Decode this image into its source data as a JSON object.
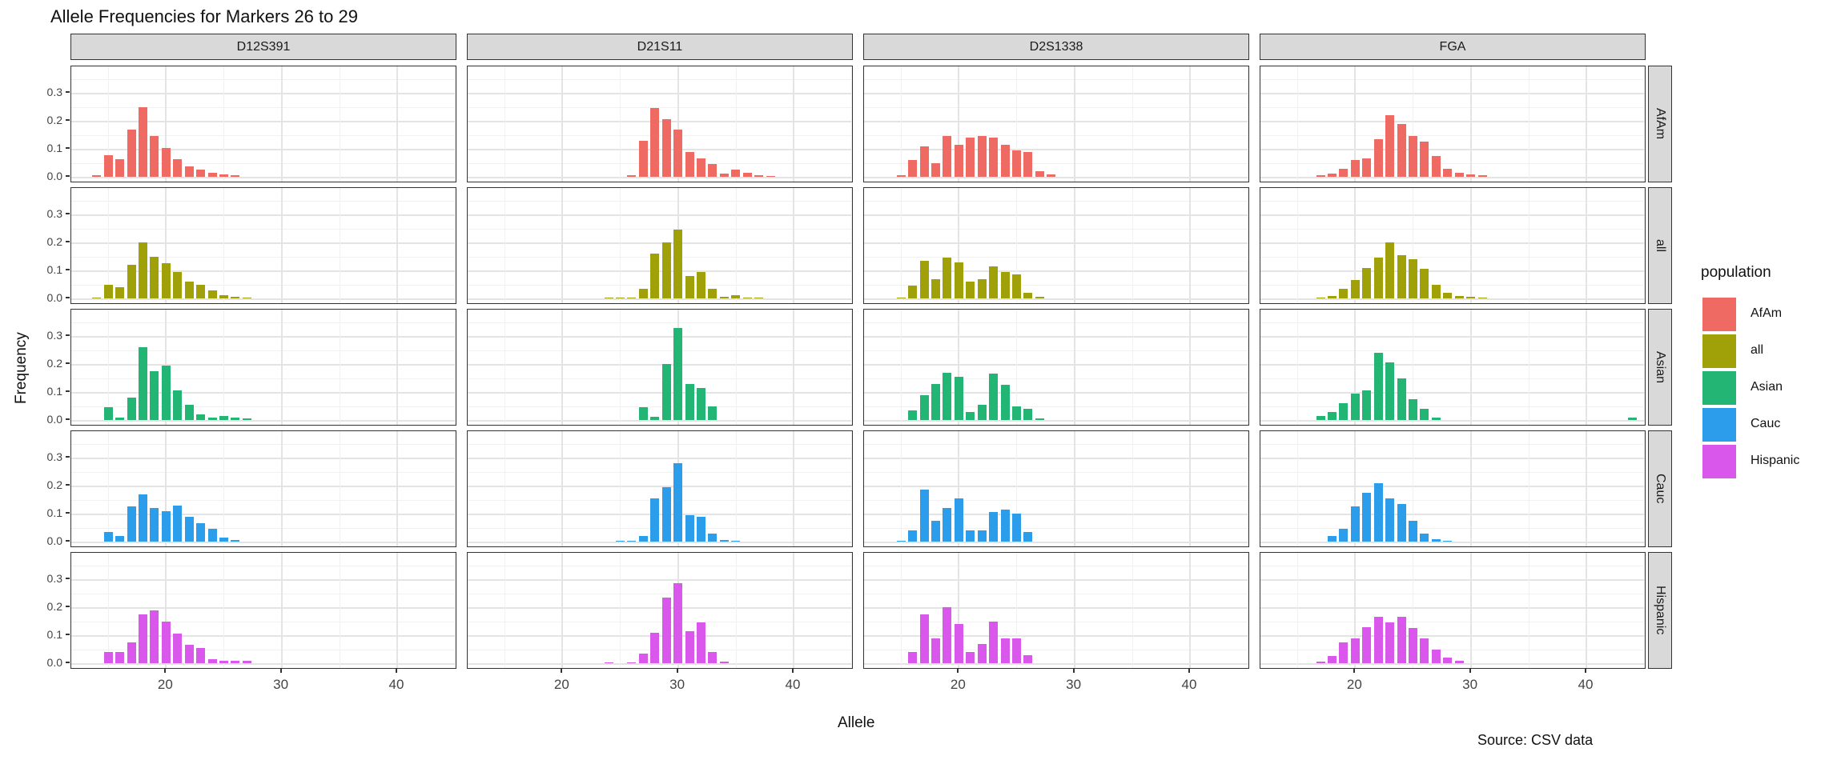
{
  "title": "Allele Frequencies for Markers 26 to 29",
  "source_note": "Source: CSV data",
  "axes": {
    "x_label": "Allele",
    "y_label": "Frequency",
    "x_ticks": [
      20,
      30,
      40
    ],
    "y_ticks": [
      0.0,
      0.1,
      0.2,
      0.3
    ]
  },
  "legend": {
    "title": "population",
    "items": [
      {
        "label": "AfAm",
        "color": "#ee6a63"
      },
      {
        "label": "all",
        "color": "#a0a008"
      },
      {
        "label": "Asian",
        "color": "#22b573"
      },
      {
        "label": "Cauc",
        "color": "#2b9deb"
      },
      {
        "label": "Hispanic",
        "color": "#d958eb"
      }
    ]
  },
  "chart_data": {
    "type": "bar",
    "title": "Allele Frequencies for Markers 26 to 29",
    "xlabel": "Allele",
    "ylabel": "Frequency",
    "facet_columns": [
      "D12S391",
      "D21S11",
      "D2S1338",
      "FGA"
    ],
    "facet_rows": [
      "AfAm",
      "all",
      "Asian",
      "Cauc",
      "Hispanic"
    ],
    "x_domain": [
      11.8,
      45.2
    ],
    "x_ticks": [
      20,
      30,
      40
    ],
    "x_minor_ticks": [
      15,
      25,
      35,
      45
    ],
    "y_ticks": [
      0.0,
      0.1,
      0.2,
      0.3
    ],
    "y_minor_ticks": [
      0.05,
      0.15,
      0.25,
      0.35
    ],
    "grid": true,
    "legend_position": "right",
    "series_colors": {
      "AfAm": "#ee6a63",
      "all": "#a0a008",
      "Asian": "#22b573",
      "Cauc": "#2b9deb",
      "Hispanic": "#d958eb"
    },
    "panels": [
      {
        "row": "AfAm",
        "col": "D12S391",
        "alleles": [
          14,
          15,
          16,
          17,
          18,
          19,
          20,
          21,
          22,
          23,
          24,
          25,
          26
        ],
        "freqs": [
          0.005,
          0.077,
          0.064,
          0.168,
          0.25,
          0.146,
          0.103,
          0.062,
          0.038,
          0.027,
          0.015,
          0.008,
          0.005
        ]
      },
      {
        "row": "AfAm",
        "col": "D21S11",
        "alleles": [
          26,
          27,
          28,
          29,
          30,
          31,
          32,
          33,
          34,
          35,
          36,
          37,
          38
        ],
        "freqs": [
          0.005,
          0.13,
          0.245,
          0.205,
          0.17,
          0.09,
          0.065,
          0.045,
          0.012,
          0.025,
          0.015,
          0.005,
          0.004
        ]
      },
      {
        "row": "AfAm",
        "col": "D2S1338",
        "alleles": [
          15,
          16,
          17,
          18,
          19,
          20,
          21,
          22,
          23,
          24,
          25,
          26,
          27,
          28
        ],
        "freqs": [
          0.005,
          0.06,
          0.11,
          0.05,
          0.145,
          0.115,
          0.14,
          0.145,
          0.14,
          0.115,
          0.095,
          0.09,
          0.02,
          0.01
        ]
      },
      {
        "row": "AfAm",
        "col": "FGA",
        "alleles": [
          17,
          18,
          19,
          20,
          21,
          22,
          23,
          24,
          25,
          26,
          27,
          28,
          29,
          30,
          31
        ],
        "freqs": [
          0.005,
          0.012,
          0.03,
          0.06,
          0.065,
          0.135,
          0.22,
          0.19,
          0.145,
          0.125,
          0.075,
          0.03,
          0.015,
          0.01,
          0.005
        ]
      },
      {
        "row": "all",
        "col": "D12S391",
        "alleles": [
          14,
          15,
          16,
          17,
          18,
          19,
          20,
          21,
          22,
          23,
          24,
          25,
          26,
          27
        ],
        "freqs": [
          0.004,
          0.05,
          0.04,
          0.12,
          0.2,
          0.15,
          0.125,
          0.095,
          0.06,
          0.05,
          0.03,
          0.012,
          0.005,
          0.003
        ]
      },
      {
        "row": "all",
        "col": "D21S11",
        "alleles": [
          24,
          25,
          26,
          27,
          28,
          29,
          30,
          31,
          32,
          33,
          34,
          35,
          36,
          37
        ],
        "freqs": [
          0.003,
          0.003,
          0.004,
          0.035,
          0.16,
          0.2,
          0.245,
          0.08,
          0.095,
          0.035,
          0.006,
          0.012,
          0.004,
          0.003
        ]
      },
      {
        "row": "all",
        "col": "D2S1338",
        "alleles": [
          15,
          16,
          17,
          18,
          19,
          20,
          21,
          22,
          23,
          24,
          25,
          26,
          27
        ],
        "freqs": [
          0.004,
          0.045,
          0.135,
          0.07,
          0.145,
          0.13,
          0.06,
          0.07,
          0.115,
          0.095,
          0.085,
          0.02,
          0.005
        ]
      },
      {
        "row": "all",
        "col": "FGA",
        "alleles": [
          17,
          18,
          19,
          20,
          21,
          22,
          23,
          24,
          25,
          26,
          27,
          28,
          29,
          30,
          31
        ],
        "freqs": [
          0.004,
          0.01,
          0.035,
          0.065,
          0.11,
          0.145,
          0.2,
          0.155,
          0.14,
          0.105,
          0.05,
          0.02,
          0.01,
          0.005,
          0.003
        ]
      },
      {
        "row": "Asian",
        "col": "D12S391",
        "alleles": [
          15,
          16,
          17,
          18,
          19,
          20,
          21,
          22,
          23,
          24,
          25,
          26,
          27
        ],
        "freqs": [
          0.045,
          0.01,
          0.08,
          0.26,
          0.175,
          0.195,
          0.105,
          0.055,
          0.02,
          0.01,
          0.015,
          0.01,
          0.005
        ]
      },
      {
        "row": "Asian",
        "col": "D21S11",
        "alleles": [
          27,
          28,
          29,
          30,
          31,
          32,
          33
        ],
        "freqs": [
          0.045,
          0.012,
          0.2,
          0.33,
          0.13,
          0.115,
          0.05
        ]
      },
      {
        "row": "Asian",
        "col": "D2S1338",
        "alleles": [
          16,
          17,
          18,
          19,
          20,
          21,
          22,
          23,
          24,
          25,
          26,
          27
        ],
        "freqs": [
          0.035,
          0.09,
          0.13,
          0.17,
          0.155,
          0.03,
          0.055,
          0.165,
          0.125,
          0.05,
          0.04,
          0.005
        ]
      },
      {
        "row": "Asian",
        "col": "FGA",
        "alleles": [
          17,
          18,
          19,
          20,
          21,
          22,
          23,
          24,
          25,
          26,
          27,
          44
        ],
        "freqs": [
          0.015,
          0.03,
          0.06,
          0.095,
          0.105,
          0.24,
          0.205,
          0.15,
          0.075,
          0.04,
          0.01,
          0.01
        ]
      },
      {
        "row": "Cauc",
        "col": "D12S391",
        "alleles": [
          15,
          16,
          17,
          18,
          19,
          20,
          21,
          22,
          23,
          24,
          25,
          26
        ],
        "freqs": [
          0.035,
          0.02,
          0.125,
          0.17,
          0.12,
          0.11,
          0.13,
          0.09,
          0.065,
          0.045,
          0.015,
          0.005
        ]
      },
      {
        "row": "Cauc",
        "col": "D21S11",
        "alleles": [
          25,
          26,
          27,
          28,
          29,
          30,
          31,
          32,
          33,
          34,
          35
        ],
        "freqs": [
          0.003,
          0.004,
          0.02,
          0.155,
          0.195,
          0.28,
          0.095,
          0.09,
          0.03,
          0.006,
          0.004
        ]
      },
      {
        "row": "Cauc",
        "col": "D2S1338",
        "alleles": [
          15,
          16,
          17,
          18,
          19,
          20,
          21,
          22,
          23,
          24,
          25,
          26
        ],
        "freqs": [
          0.004,
          0.04,
          0.185,
          0.075,
          0.12,
          0.155,
          0.04,
          0.04,
          0.105,
          0.115,
          0.1,
          0.035
        ]
      },
      {
        "row": "Cauc",
        "col": "FGA",
        "alleles": [
          18,
          19,
          20,
          21,
          22,
          23,
          24,
          25,
          26,
          27,
          28
        ],
        "freqs": [
          0.02,
          0.045,
          0.125,
          0.175,
          0.21,
          0.155,
          0.135,
          0.075,
          0.03,
          0.01,
          0.004
        ]
      },
      {
        "row": "Hispanic",
        "col": "D12S391",
        "alleles": [
          15,
          16,
          17,
          18,
          19,
          20,
          21,
          22,
          23,
          24,
          25,
          26,
          27
        ],
        "freqs": [
          0.04,
          0.04,
          0.075,
          0.175,
          0.19,
          0.15,
          0.105,
          0.065,
          0.055,
          0.015,
          0.008,
          0.008,
          0.008
        ]
      },
      {
        "row": "Hispanic",
        "col": "D21S11",
        "alleles": [
          24,
          26,
          27,
          28,
          29,
          30,
          31,
          32,
          33,
          34
        ],
        "freqs": [
          0.003,
          0.004,
          0.035,
          0.11,
          0.235,
          0.285,
          0.115,
          0.145,
          0.04,
          0.005
        ]
      },
      {
        "row": "Hispanic",
        "col": "D2S1338",
        "alleles": [
          16,
          17,
          18,
          19,
          20,
          21,
          22,
          23,
          24,
          25,
          26
        ],
        "freqs": [
          0.04,
          0.175,
          0.09,
          0.2,
          0.14,
          0.04,
          0.07,
          0.15,
          0.09,
          0.09,
          0.03
        ]
      },
      {
        "row": "Hispanic",
        "col": "FGA",
        "alleles": [
          17,
          18,
          19,
          20,
          21,
          22,
          23,
          24,
          25,
          26,
          27,
          28,
          29
        ],
        "freqs": [
          0.005,
          0.025,
          0.075,
          0.09,
          0.13,
          0.165,
          0.145,
          0.165,
          0.125,
          0.09,
          0.05,
          0.02,
          0.008
        ]
      }
    ]
  }
}
